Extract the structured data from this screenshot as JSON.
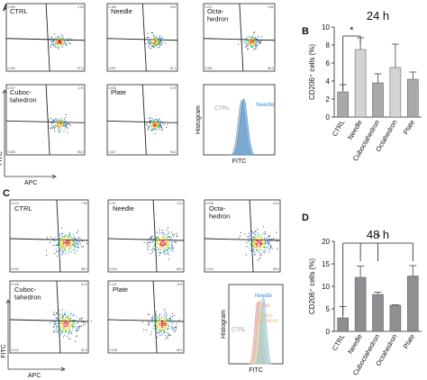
{
  "panels": {
    "A": {
      "letter": "A",
      "plots": [
        {
          "label": "CTRL",
          "q_ul": "0.209",
          "q_ur": "2.18",
          "q_ll": "0.009",
          "q_lr": "97.6",
          "gate_pattern": "a"
        },
        {
          "label": "Needle",
          "q_ul": "0.126",
          "q_ur": "8.67",
          "q_ll": "0.057",
          "q_lr": "91.1",
          "gate_pattern": "a"
        },
        {
          "label": "Octa-\nhedron",
          "q_ul": "0.017",
          "q_ur": "3.64",
          "q_ll": "0.052",
          "q_lr": "96.3",
          "gate_pattern": "a"
        },
        {
          "label": "Cuboc-\ntahedron",
          "q_ul": "0.027",
          "q_ur": "3.75",
          "q_ll": "0.009",
          "q_lr": "96.2",
          "gate_pattern": "a"
        },
        {
          "label": "Plate",
          "q_ul": "0.035",
          "q_ur": "5.75",
          "q_ll": "0.027",
          "q_lr": "94.2",
          "gate_pattern": "a"
        }
      ],
      "histogram": {
        "ylabel": "Histogram",
        "xlabel": "FITC",
        "labels": [
          "CTRL",
          "Needle"
        ],
        "label_colors": [
          "#9a9a9a",
          "#3d8fd6"
        ]
      },
      "yaxis": "FITC",
      "xaxis": "APC"
    },
    "C": {
      "letter": "C",
      "plots": [
        {
          "label": "CTRL",
          "q_ul": "0.074",
          "q_ur": "7.99",
          "q_ll": "0.013",
          "q_lr": "88.2"
        },
        {
          "label": "Needle",
          "q_ul": "0.33",
          "q_ur": "12.0",
          "q_ll": "0.023",
          "q_lr": "85.0"
        },
        {
          "label": "Octa-\nhedron",
          "q_ul": "0.036",
          "q_ur": "4.15",
          "q_ll": "0.014",
          "q_lr": "95.8"
        },
        {
          "label": "Cuboc-\ntahedron",
          "q_ul": "0.028",
          "q_ur": "8.13",
          "q_ll": "0.013",
          "q_lr": "91.8"
        },
        {
          "label": "Plate",
          "q_ul": "0.121",
          "q_ur": "10.8",
          "q_ll": "0.018",
          "q_lr": "89.1"
        }
      ],
      "histogram": {
        "ylabel": "Histogram",
        "xlabel": "FITC",
        "labels": [
          "CTRL",
          "Needle",
          "Plate",
          "Cuboc-\ntahedron"
        ],
        "label_colors": [
          "#9a9a9a",
          "#3d8fd6",
          "#e89aa0",
          "#e6b98a"
        ]
      },
      "yaxis": "FITC",
      "xaxis": "APC"
    }
  },
  "chart_data": [
    {
      "panel": "B",
      "type": "bar",
      "title": "24 h",
      "ylabel": "CD206⁺ cells (%)",
      "categories": [
        "CTRL",
        "Needle",
        "Cuboctahedron",
        "Octahedron",
        "Plate"
      ],
      "values": [
        2.8,
        7.5,
        3.8,
        5.5,
        4.2
      ],
      "errors": [
        0.8,
        1.3,
        1.0,
        2.6,
        0.8
      ],
      "ylim": [
        0,
        10
      ],
      "yticks": [
        0,
        2,
        4,
        6,
        8,
        10
      ],
      "bar_colors": [
        "#a9a9a9",
        "#d3d3d3",
        "#a9a9a9",
        "#d3d3d3",
        "#a9a9a9"
      ],
      "significance": {
        "label": "*",
        "pairs": [
          [
            0,
            1
          ]
        ]
      }
    },
    {
      "panel": "D",
      "type": "bar",
      "title": "48 h",
      "ylabel": "CD206⁺ cells (%)",
      "categories": [
        "CTRL",
        "Needle",
        "Cuboctahedron",
        "Octahedron",
        "Plate"
      ],
      "values": [
        3.0,
        12.0,
        8.2,
        5.8,
        12.3
      ],
      "errors": [
        2.5,
        2.5,
        0.5,
        0.1,
        2.3
      ],
      "ylim": [
        0,
        20
      ],
      "yticks": [
        0,
        5,
        10,
        15,
        20
      ],
      "bar_colors": [
        "#8e8e93",
        "#8e8e93",
        "#8e8e93",
        "#8e8e93",
        "#8e8e93"
      ],
      "significance": {
        "label": "*",
        "pairs": [
          [
            0,
            1
          ],
          [
            0,
            2
          ],
          [
            0,
            4
          ]
        ]
      }
    }
  ]
}
